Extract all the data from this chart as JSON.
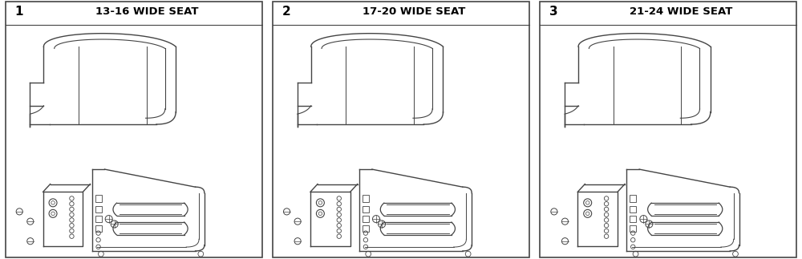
{
  "panels": [
    {
      "number": "1",
      "title": "13-16 WIDE SEAT"
    },
    {
      "number": "2",
      "title": "17-20 WIDE SEAT"
    },
    {
      "number": "3",
      "title": "21-24 WIDE SEAT"
    }
  ],
  "bg_color": "#ffffff",
  "border_color": "#444444",
  "line_color": "#444444",
  "title_fontsize": 9.5,
  "number_fontsize": 11,
  "figure_width": 10.0,
  "figure_height": 3.23,
  "dpi": 100
}
